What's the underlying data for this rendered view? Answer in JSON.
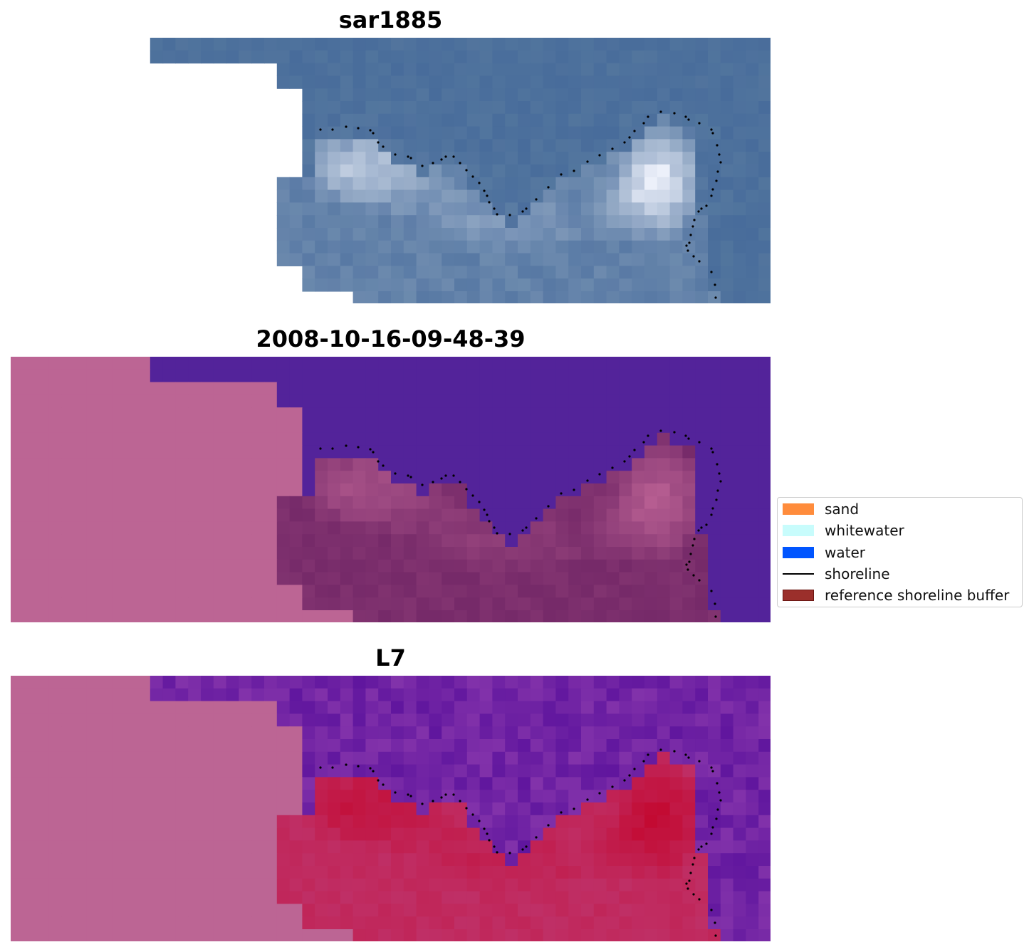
{
  "panels": [
    {
      "title": "sar1885"
    },
    {
      "title": "2008-10-16-09-48-39"
    },
    {
      "title": "L7"
    }
  ],
  "legend": {
    "items": [
      {
        "label": "sand",
        "color": "#ff8c3c",
        "kind": "patch"
      },
      {
        "label": "whitewater",
        "color": "#c8fcfc",
        "kind": "patch"
      },
      {
        "label": "water",
        "color": "#0055ff",
        "kind": "patch"
      },
      {
        "label": "shoreline",
        "color": "#000000",
        "kind": "line"
      },
      {
        "label": "reference shoreline buffer",
        "color": "#9b2f2b",
        "kind": "patch"
      }
    ]
  },
  "colors": {
    "rgb_water": "#4a6e9a",
    "class_water": "#53239a",
    "nodata_pink": "#bc6594",
    "mndwi_water": "#6b1f9e",
    "mndwi_land": "#c0183f"
  }
}
